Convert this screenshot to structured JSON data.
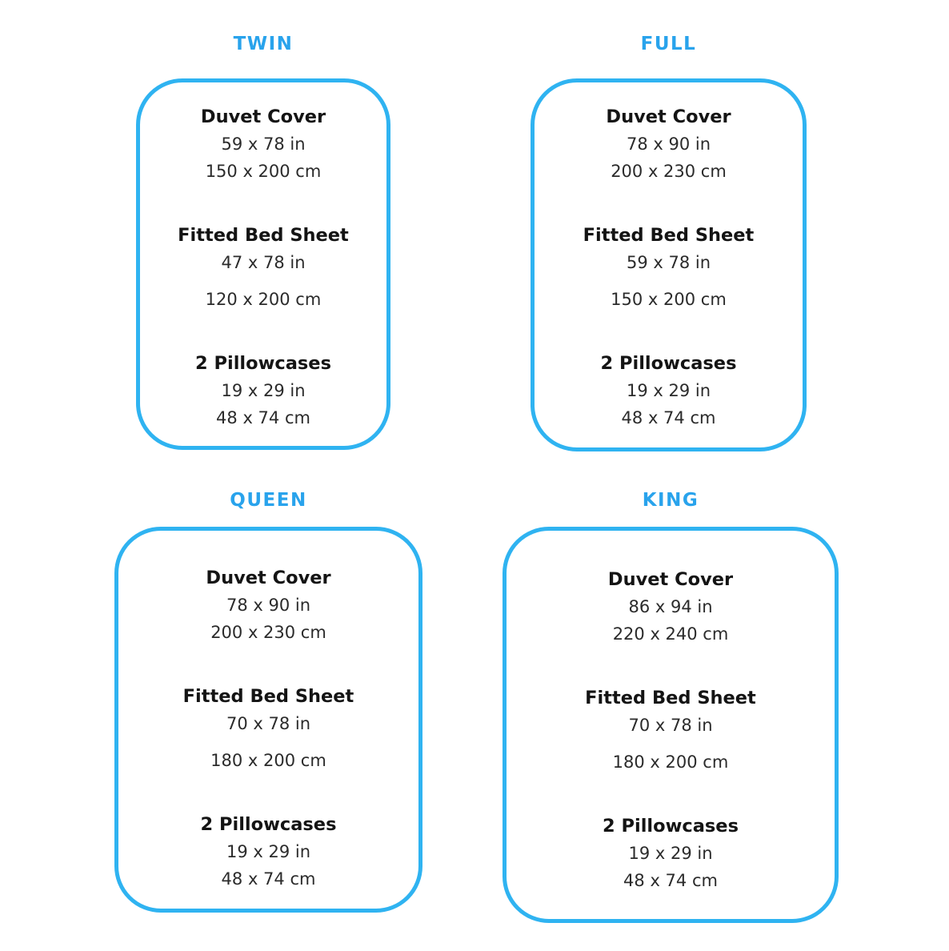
{
  "colors": {
    "accent": "#2FB3F1",
    "label-color": "#29A3EC",
    "title-color": "#141414",
    "value-color": "#2b2b2b"
  },
  "panels": [
    {
      "size_label": "TWIN",
      "sections": [
        {
          "title": "Duvet Cover",
          "inches": "59 x 78 in",
          "cm": "150 x 200 cm"
        },
        {
          "title": "Fitted Bed Sheet",
          "inches": "47 x 78 in",
          "cm": "120 x 200 cm"
        },
        {
          "title": "2 Pillowcases",
          "inches": "19 x 29 in",
          "cm": "48 x 74 cm"
        }
      ]
    },
    {
      "size_label": "FULL",
      "sections": [
        {
          "title": "Duvet Cover",
          "inches": "78 x 90 in",
          "cm": "200 x 230 cm"
        },
        {
          "title": "Fitted Bed Sheet",
          "inches": "59 x 78 in",
          "cm": "150 x 200 cm"
        },
        {
          "title": "2 Pillowcases",
          "inches": "19 x 29 in",
          "cm": "48 x 74 cm"
        }
      ]
    },
    {
      "size_label": "QUEEN",
      "sections": [
        {
          "title": "Duvet Cover",
          "inches": "78 x 90 in",
          "cm": "200 x 230 cm"
        },
        {
          "title": "Fitted Bed Sheet",
          "inches": "70 x 78 in",
          "cm": "180 x 200 cm"
        },
        {
          "title": "2 Pillowcases",
          "inches": "19 x 29 in",
          "cm": "48 x 74 cm"
        }
      ]
    },
    {
      "size_label": "KING",
      "sections": [
        {
          "title": "Duvet Cover",
          "inches": "86 x 94 in",
          "cm": "220 x 240 cm"
        },
        {
          "title": "Fitted Bed Sheet",
          "inches": "70 x 78 in",
          "cm": "180 x 200 cm"
        },
        {
          "title": "2 Pillowcases",
          "inches": "19 x 29 in",
          "cm": "48 x 74 cm"
        }
      ]
    }
  ]
}
